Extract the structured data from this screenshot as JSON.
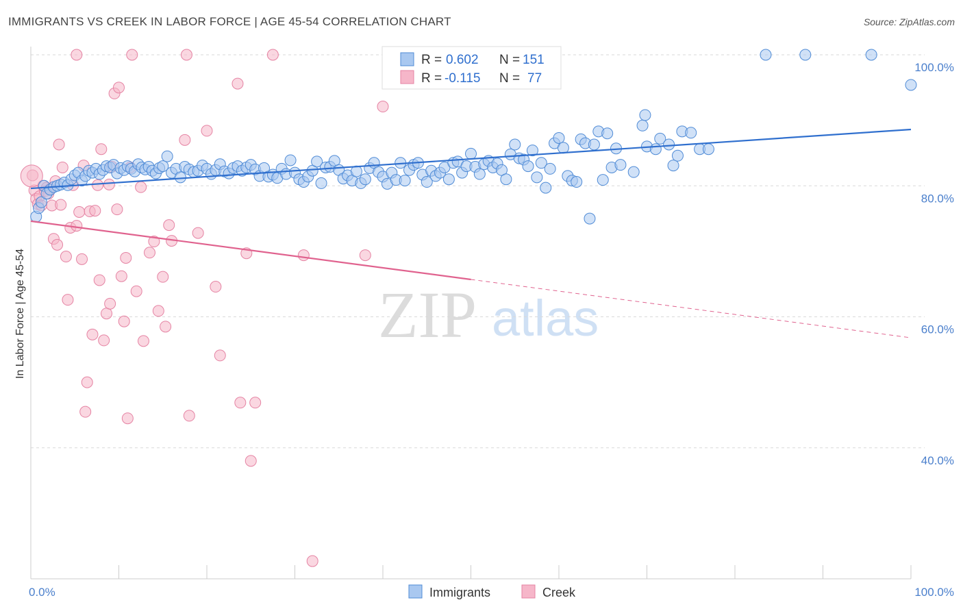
{
  "title": "IMMIGRANTS VS CREEK IN LABOR FORCE | AGE 45-54 CORRELATION CHART",
  "source": "Source: ZipAtlas.com",
  "watermark": {
    "zip": "ZIP",
    "atlas": "atlas"
  },
  "colors": {
    "immigrants_fill": "#a9c8f0",
    "immigrants_stroke": "#4f8bd6",
    "immigrants_line": "#2f6fce",
    "creek_fill": "#f6b6c9",
    "creek_stroke": "#e583a3",
    "creek_line": "#e0628e",
    "tick_label": "#4a7fcc",
    "grid": "#d9d9d9"
  },
  "legend_top": {
    "rows": [
      {
        "series": "Immigrants",
        "r_label": "R =",
        "r_value": "0.602",
        "n_label": "N =",
        "n_value": "151"
      },
      {
        "series": "Creek",
        "r_label": "R =",
        "r_value": "-0.115",
        "n_label": "N =",
        "n_value": "77"
      }
    ]
  },
  "chart_data": {
    "type": "scatter",
    "title": "IMMIGRANTS VS CREEK IN LABOR FORCE | AGE 45-54 CORRELATION CHART",
    "xlabel": "",
    "ylabel": "In Labor Force | Age 45-54",
    "xlim": [
      0,
      100
    ],
    "ylim": [
      20,
      103
    ],
    "x_tick_labels": [
      "0.0%",
      "100.0%"
    ],
    "y_ticks": [
      40,
      60,
      80,
      100
    ],
    "y_tick_labels": [
      "40.0%",
      "60.0%",
      "80.0%",
      "100.0%"
    ],
    "grid": true,
    "legend_placement": "top-center and bottom",
    "series": [
      {
        "name": "Immigrants",
        "r": 0.602,
        "n": 151,
        "trend": {
          "x": [
            0,
            100
          ],
          "y": [
            79.6,
            88.6
          ],
          "dashed_from": null
        },
        "points": [
          [
            0.6,
            75.3
          ],
          [
            0.9,
            76.6
          ],
          [
            1.2,
            77.5
          ],
          [
            1.5,
            80.0
          ],
          [
            1.8,
            78.8
          ],
          [
            2.2,
            79.4
          ],
          [
            2.6,
            79.8
          ],
          [
            3.0,
            80.0
          ],
          [
            3.4,
            80.2
          ],
          [
            3.8,
            80.5
          ],
          [
            4.2,
            80.1
          ],
          [
            4.6,
            81.0
          ],
          [
            5.0,
            81.6
          ],
          [
            5.4,
            82.0
          ],
          [
            5.8,
            80.8
          ],
          [
            6.2,
            81.5
          ],
          [
            6.6,
            82.3
          ],
          [
            7.0,
            82.0
          ],
          [
            7.4,
            82.6
          ],
          [
            7.8,
            81.8
          ],
          [
            8.2,
            82.4
          ],
          [
            8.6,
            83.0
          ],
          [
            9.0,
            82.8
          ],
          [
            9.4,
            83.2
          ],
          [
            9.8,
            81.9
          ],
          [
            10.2,
            82.7
          ],
          [
            10.6,
            82.4
          ],
          [
            11.0,
            83.0
          ],
          [
            11.4,
            82.6
          ],
          [
            11.8,
            82.2
          ],
          [
            12.2,
            83.3
          ],
          [
            12.6,
            82.8
          ],
          [
            13.0,
            82.5
          ],
          [
            13.4,
            82.9
          ],
          [
            13.8,
            82.3
          ],
          [
            14.2,
            81.9
          ],
          [
            14.6,
            82.7
          ],
          [
            15.0,
            83.0
          ],
          [
            15.5,
            84.5
          ],
          [
            16.0,
            82.0
          ],
          [
            16.5,
            82.6
          ],
          [
            17.0,
            81.3
          ],
          [
            17.5,
            82.9
          ],
          [
            18.0,
            82.5
          ],
          [
            18.5,
            82.1
          ],
          [
            19.0,
            82.3
          ],
          [
            19.5,
            83.1
          ],
          [
            20.0,
            82.6
          ],
          [
            20.5,
            81.8
          ],
          [
            21.0,
            82.4
          ],
          [
            21.5,
            83.3
          ],
          [
            22.0,
            82.2
          ],
          [
            22.5,
            81.9
          ],
          [
            23.0,
            82.7
          ],
          [
            23.5,
            83.0
          ],
          [
            24.0,
            82.3
          ],
          [
            24.5,
            82.8
          ],
          [
            25.0,
            83.2
          ],
          [
            25.5,
            82.5
          ],
          [
            26.0,
            81.5
          ],
          [
            26.5,
            82.7
          ],
          [
            27.0,
            81.4
          ],
          [
            27.5,
            81.7
          ],
          [
            28.0,
            81.2
          ],
          [
            28.5,
            82.6
          ],
          [
            29.0,
            81.8
          ],
          [
            29.5,
            83.9
          ],
          [
            30.0,
            82.0
          ],
          [
            30.5,
            81.0
          ],
          [
            31.0,
            80.6
          ],
          [
            31.5,
            81.4
          ],
          [
            32.0,
            82.3
          ],
          [
            32.5,
            83.7
          ],
          [
            33.0,
            80.4
          ],
          [
            33.5,
            82.8
          ],
          [
            34.0,
            82.9
          ],
          [
            34.5,
            83.8
          ],
          [
            35.0,
            82.4
          ],
          [
            35.5,
            81.1
          ],
          [
            36.0,
            81.6
          ],
          [
            36.5,
            80.8
          ],
          [
            37.0,
            82.2
          ],
          [
            37.5,
            80.4
          ],
          [
            38.0,
            81.0
          ],
          [
            38.5,
            82.7
          ],
          [
            39.0,
            83.5
          ],
          [
            39.5,
            82.1
          ],
          [
            40.0,
            81.4
          ],
          [
            40.5,
            80.3
          ],
          [
            41.0,
            82.0
          ],
          [
            41.5,
            80.9
          ],
          [
            42.0,
            83.5
          ],
          [
            42.5,
            80.8
          ],
          [
            43.0,
            82.4
          ],
          [
            43.5,
            83.2
          ],
          [
            44.0,
            83.5
          ],
          [
            44.5,
            81.7
          ],
          [
            45.0,
            80.6
          ],
          [
            45.5,
            82.3
          ],
          [
            46.0,
            81.5
          ],
          [
            46.5,
            82.0
          ],
          [
            47.0,
            82.8
          ],
          [
            47.5,
            81.0
          ],
          [
            48.0,
            83.5
          ],
          [
            48.5,
            83.7
          ],
          [
            49.0,
            82.0
          ],
          [
            49.5,
            83.0
          ],
          [
            50.0,
            84.9
          ],
          [
            50.5,
            82.9
          ],
          [
            51.0,
            81.8
          ],
          [
            51.5,
            83.3
          ],
          [
            52.0,
            83.8
          ],
          [
            52.5,
            82.8
          ],
          [
            53.0,
            83.4
          ],
          [
            53.5,
            82.4
          ],
          [
            54.0,
            81.0
          ],
          [
            54.5,
            84.8
          ],
          [
            55.0,
            86.3
          ],
          [
            55.5,
            84.2
          ],
          [
            56.0,
            84.0
          ],
          [
            56.5,
            83.0
          ],
          [
            57.0,
            85.4
          ],
          [
            57.5,
            81.3
          ],
          [
            58.0,
            83.5
          ],
          [
            58.5,
            79.7
          ],
          [
            59.0,
            82.6
          ],
          [
            59.5,
            86.5
          ],
          [
            60.0,
            87.3
          ],
          [
            60.5,
            85.8
          ],
          [
            61.0,
            81.5
          ],
          [
            61.5,
            80.8
          ],
          [
            62.0,
            80.6
          ],
          [
            62.5,
            87.1
          ],
          [
            63.0,
            86.5
          ],
          [
            63.5,
            75.0
          ],
          [
            64.0,
            86.3
          ],
          [
            64.5,
            88.3
          ],
          [
            65.0,
            80.9
          ],
          [
            65.5,
            88.0
          ],
          [
            66.0,
            82.8
          ],
          [
            66.5,
            85.7
          ],
          [
            67.0,
            83.2
          ],
          [
            68.5,
            82.1
          ],
          [
            69.5,
            89.2
          ],
          [
            69.8,
            90.8
          ],
          [
            70.0,
            86.0
          ],
          [
            71.0,
            85.6
          ],
          [
            71.5,
            87.2
          ],
          [
            72.5,
            86.3
          ],
          [
            73.0,
            83.1
          ],
          [
            73.5,
            84.6
          ],
          [
            74.0,
            88.3
          ],
          [
            75.0,
            88.1
          ],
          [
            76.0,
            85.6
          ],
          [
            77.0,
            85.6
          ],
          [
            83.5,
            100.0
          ],
          [
            88.0,
            100.0
          ],
          [
            95.5,
            100.0
          ],
          [
            100.0,
            95.4
          ]
        ]
      },
      {
        "name": "Creek",
        "r": -0.115,
        "n": 77,
        "trend": {
          "x": [
            0,
            100
          ],
          "y": [
            74.6,
            56.8
          ],
          "dashed_from": 50
        },
        "points": [
          [
            0.2,
            81.6
          ],
          [
            0.4,
            79.3
          ],
          [
            0.6,
            78.0
          ],
          [
            0.8,
            77.2
          ],
          [
            1.0,
            78.4
          ],
          [
            1.2,
            77.0
          ],
          [
            1.4,
            80.0
          ],
          [
            1.6,
            79.2
          ],
          [
            1.8,
            79.7
          ],
          [
            2.0,
            78.8
          ],
          [
            2.2,
            79.5
          ],
          [
            2.4,
            77.0
          ],
          [
            2.6,
            71.9
          ],
          [
            2.8,
            80.7
          ],
          [
            3.0,
            71.0
          ],
          [
            3.2,
            86.3
          ],
          [
            3.4,
            77.1
          ],
          [
            3.6,
            82.8
          ],
          [
            4.0,
            69.2
          ],
          [
            4.2,
            62.6
          ],
          [
            4.5,
            73.6
          ],
          [
            4.8,
            80.1
          ],
          [
            5.2,
            73.9
          ],
          [
            5.5,
            76.0
          ],
          [
            5.8,
            68.8
          ],
          [
            6.0,
            83.1
          ],
          [
            6.2,
            45.5
          ],
          [
            6.4,
            50.0
          ],
          [
            6.7,
            76.1
          ],
          [
            7.0,
            57.3
          ],
          [
            7.3,
            76.2
          ],
          [
            7.6,
            80.1
          ],
          [
            7.8,
            65.6
          ],
          [
            8.0,
            85.6
          ],
          [
            8.3,
            56.4
          ],
          [
            8.6,
            60.5
          ],
          [
            8.9,
            80.2
          ],
          [
            9.0,
            62.0
          ],
          [
            9.2,
            82.9
          ],
          [
            9.5,
            94.1
          ],
          [
            9.8,
            76.4
          ],
          [
            10.0,
            95.0
          ],
          [
            10.3,
            66.2
          ],
          [
            10.6,
            59.3
          ],
          [
            10.8,
            69.0
          ],
          [
            11.0,
            44.5
          ],
          [
            11.3,
            82.8
          ],
          [
            12.0,
            63.9
          ],
          [
            12.5,
            79.8
          ],
          [
            12.8,
            56.3
          ],
          [
            13.5,
            69.8
          ],
          [
            14.0,
            71.5
          ],
          [
            14.5,
            60.9
          ],
          [
            15.0,
            66.1
          ],
          [
            15.3,
            58.5
          ],
          [
            15.7,
            74.0
          ],
          [
            16.0,
            71.6
          ],
          [
            17.5,
            87.0
          ],
          [
            18.0,
            44.9
          ],
          [
            19.0,
            72.8
          ],
          [
            20.0,
            88.4
          ],
          [
            21.0,
            64.6
          ],
          [
            21.5,
            54.1
          ],
          [
            23.5,
            95.6
          ],
          [
            23.8,
            46.9
          ],
          [
            24.5,
            69.7
          ],
          [
            25.0,
            38.0
          ],
          [
            25.5,
            46.9
          ],
          [
            32.0,
            22.7
          ],
          [
            31.0,
            69.4
          ],
          [
            38.0,
            69.4
          ],
          [
            40.0,
            92.1
          ],
          [
            5.2,
            100.0
          ],
          [
            11.5,
            100.0
          ],
          [
            17.7,
            100.0
          ],
          [
            27.5,
            100.0
          ],
          [
            0.1,
            81.5
          ]
        ]
      }
    ]
  },
  "bottom_legend": {
    "items": [
      {
        "label": "Immigrants"
      },
      {
        "label": "Creek"
      }
    ]
  }
}
